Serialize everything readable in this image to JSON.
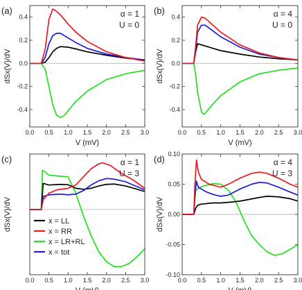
{
  "colors": {
    "LL": "#000000",
    "RR": "#e8191f",
    "LRRL": "#22e01c",
    "tot": "#1a1ad8"
  },
  "chart_data": [
    {
      "type": "line",
      "panel_label": "(a)",
      "annotation": [
        "α = 1",
        "U = 0"
      ],
      "xlabel": "V (mV)",
      "ylabel": "dSx(V)/dV",
      "xlim": [
        0,
        3.0
      ],
      "ylim": [
        -0.55,
        0.5
      ],
      "xticks": [
        0.0,
        0.5,
        1.0,
        1.5,
        2.0,
        2.5,
        3.0
      ],
      "xticklabels": [
        "0.0",
        "0.5",
        "1.0",
        "1.5",
        "2.0",
        "2.5",
        "3.0"
      ],
      "yticks": [
        -0.4,
        -0.2,
        0.0,
        0.2,
        0.4
      ],
      "yticklabels": [
        "-0.4",
        "-0.2",
        "0.0",
        "0.2",
        "0.4"
      ],
      "grid": false,
      "series": [
        {
          "key": "LL",
          "values": [
            [
              0,
              0
            ],
            [
              0.3,
              0
            ],
            [
              0.4,
              0.01
            ],
            [
              0.5,
              0.05
            ],
            [
              0.6,
              0.1
            ],
            [
              0.7,
              0.13
            ],
            [
              0.8,
              0.145
            ],
            [
              1.0,
              0.14
            ],
            [
              1.2,
              0.125
            ],
            [
              1.5,
              0.1
            ],
            [
              2.0,
              0.07
            ],
            [
              2.5,
              0.045
            ],
            [
              3.0,
              0.03
            ]
          ]
        },
        {
          "key": "RR",
          "values": [
            [
              0,
              0
            ],
            [
              0.3,
              0
            ],
            [
              0.4,
              0.12
            ],
            [
              0.5,
              0.38
            ],
            [
              0.6,
              0.47
            ],
            [
              0.7,
              0.45
            ],
            [
              0.8,
              0.42
            ],
            [
              1.0,
              0.34
            ],
            [
              1.2,
              0.27
            ],
            [
              1.5,
              0.19
            ],
            [
              2.0,
              0.1
            ],
            [
              2.5,
              0.05
            ],
            [
              3.0,
              0.02
            ]
          ]
        },
        {
          "key": "tot",
          "values": [
            [
              0,
              0
            ],
            [
              0.3,
              0
            ],
            [
              0.4,
              0.05
            ],
            [
              0.5,
              0.17
            ],
            [
              0.6,
              0.24
            ],
            [
              0.7,
              0.26
            ],
            [
              0.8,
              0.26
            ],
            [
              1.0,
              0.22
            ],
            [
              1.2,
              0.18
            ],
            [
              1.5,
              0.13
            ],
            [
              2.0,
              0.08
            ],
            [
              2.5,
              0.05
            ],
            [
              3.0,
              0.03
            ]
          ]
        },
        {
          "key": "LRRL",
          "values": [
            [
              0,
              0
            ],
            [
              0.3,
              0
            ],
            [
              0.4,
              -0.05
            ],
            [
              0.5,
              -0.2
            ],
            [
              0.6,
              -0.36
            ],
            [
              0.7,
              -0.45
            ],
            [
              0.8,
              -0.47
            ],
            [
              0.9,
              -0.45
            ],
            [
              1.0,
              -0.41
            ],
            [
              1.2,
              -0.33
            ],
            [
              1.5,
              -0.24
            ],
            [
              2.0,
              -0.14
            ],
            [
              2.5,
              -0.09
            ],
            [
              3.0,
              -0.06
            ]
          ]
        }
      ]
    },
    {
      "type": "line",
      "panel_label": "(b)",
      "annotation": [
        "α = 4",
        "U = 0"
      ],
      "xlabel": "V (mV)",
      "ylabel": "dSx(V)/dV",
      "xlim": [
        0,
        3.0
      ],
      "ylim": [
        -0.55,
        0.5
      ],
      "xticks": [
        0.0,
        0.5,
        1.0,
        1.5,
        2.0,
        2.5,
        3.0
      ],
      "xticklabels": [
        "0.0",
        "0.5",
        "1.0",
        "1.5",
        "2.0",
        "2.5",
        "3.0"
      ],
      "yticks": [
        -0.4,
        -0.2,
        0.0,
        0.2,
        0.4
      ],
      "yticklabels": [
        "-0.4",
        "-0.2",
        "0.0",
        "0.2",
        "0.4"
      ],
      "grid": false,
      "series": [
        {
          "key": "LL",
          "values": [
            [
              0,
              0
            ],
            [
              0.3,
              0
            ],
            [
              0.35,
              0.1
            ],
            [
              0.4,
              0.17
            ],
            [
              0.5,
              0.16
            ],
            [
              0.6,
              0.15
            ],
            [
              0.8,
              0.13
            ],
            [
              1.0,
              0.11
            ],
            [
              1.5,
              0.08
            ],
            [
              2.0,
              0.055
            ],
            [
              2.5,
              0.04
            ],
            [
              3.0,
              0.03
            ]
          ]
        },
        {
          "key": "RR",
          "values": [
            [
              0,
              0
            ],
            [
              0.3,
              0
            ],
            [
              0.35,
              0.15
            ],
            [
              0.4,
              0.33
            ],
            [
              0.5,
              0.4
            ],
            [
              0.6,
              0.39
            ],
            [
              0.8,
              0.33
            ],
            [
              1.0,
              0.27
            ],
            [
              1.5,
              0.16
            ],
            [
              2.0,
              0.09
            ],
            [
              2.5,
              0.05
            ],
            [
              3.0,
              0.03
            ]
          ]
        },
        {
          "key": "tot",
          "values": [
            [
              0,
              0
            ],
            [
              0.3,
              0
            ],
            [
              0.35,
              0.12
            ],
            [
              0.4,
              0.27
            ],
            [
              0.5,
              0.33
            ],
            [
              0.6,
              0.33
            ],
            [
              0.8,
              0.28
            ],
            [
              1.0,
              0.23
            ],
            [
              1.5,
              0.14
            ],
            [
              2.0,
              0.08
            ],
            [
              2.5,
              0.05
            ],
            [
              3.0,
              0.03
            ]
          ]
        },
        {
          "key": "LRRL",
          "values": [
            [
              0,
              0
            ],
            [
              0.3,
              0
            ],
            [
              0.35,
              -0.1
            ],
            [
              0.4,
              -0.25
            ],
            [
              0.5,
              -0.42
            ],
            [
              0.55,
              -0.44
            ],
            [
              0.6,
              -0.43
            ],
            [
              0.8,
              -0.35
            ],
            [
              1.0,
              -0.28
            ],
            [
              1.5,
              -0.16
            ],
            [
              2.0,
              -0.09
            ],
            [
              2.5,
              -0.06
            ],
            [
              3.0,
              -0.04
            ]
          ]
        }
      ]
    },
    {
      "type": "line",
      "panel_label": "(c)",
      "annotation": [
        "α = 1",
        "U = 3"
      ],
      "xlabel": "V (mV)",
      "ylabel": "dSx(V)/dV",
      "xlim": [
        0,
        3.0
      ],
      "ylim": [
        -0.2,
        0.17
      ],
      "xticks": [
        0.0,
        0.5,
        1.0,
        1.5,
        2.0,
        2.5,
        3.0
      ],
      "xticklabels": [
        "0.0",
        "0.5",
        "1.0",
        "1.5",
        "2.0",
        "2.5",
        "3.0"
      ],
      "yticks": [],
      "yticklabels": [],
      "grid": false,
      "legend": {
        "placement": "bottom-left",
        "entries": [
          {
            "key": "LL",
            "label": "x = LL"
          },
          {
            "key": "RR",
            "label": "x = RR"
          },
          {
            "key": "LRRL",
            "label": "x = LR+RL"
          },
          {
            "key": "tot",
            "label": "x = tot"
          }
        ]
      },
      "series": [
        {
          "key": "LL",
          "values": [
            [
              0,
              0
            ],
            [
              0.3,
              0
            ],
            [
              0.35,
              0.08
            ],
            [
              0.5,
              0.075
            ],
            [
              0.8,
              0.077
            ],
            [
              1.0,
              0.076
            ],
            [
              1.2,
              0.065
            ],
            [
              1.4,
              0.062
            ],
            [
              1.6,
              0.065
            ],
            [
              1.8,
              0.072
            ],
            [
              2.0,
              0.077
            ],
            [
              2.2,
              0.078
            ],
            [
              2.5,
              0.072
            ],
            [
              2.8,
              0.062
            ],
            [
              3.0,
              0.055
            ]
          ]
        },
        {
          "key": "RR",
          "values": [
            [
              0,
              0
            ],
            [
              0.3,
              0
            ],
            [
              0.35,
              0.03
            ],
            [
              0.5,
              0.05
            ],
            [
              0.7,
              0.06
            ],
            [
              1.0,
              0.065
            ],
            [
              1.2,
              0.075
            ],
            [
              1.4,
              0.1
            ],
            [
              1.6,
              0.125
            ],
            [
              1.8,
              0.14
            ],
            [
              1.9,
              0.143
            ],
            [
              2.1,
              0.135
            ],
            [
              2.4,
              0.11
            ],
            [
              2.7,
              0.09
            ],
            [
              3.0,
              0.065
            ]
          ]
        },
        {
          "key": "tot",
          "values": [
            [
              0,
              0
            ],
            [
              0.3,
              0
            ],
            [
              0.35,
              0.04
            ],
            [
              0.5,
              0.045
            ],
            [
              0.8,
              0.047
            ],
            [
              1.0,
              0.045
            ],
            [
              1.2,
              0.047
            ],
            [
              1.4,
              0.058
            ],
            [
              1.6,
              0.075
            ],
            [
              1.8,
              0.088
            ],
            [
              2.0,
              0.095
            ],
            [
              2.2,
              0.093
            ],
            [
              2.5,
              0.085
            ],
            [
              2.8,
              0.07
            ],
            [
              3.0,
              0.06
            ]
          ]
        },
        {
          "key": "LRRL",
          "values": [
            [
              0,
              0
            ],
            [
              0.3,
              0
            ],
            [
              0.33,
              0.12
            ],
            [
              0.4,
              0.115
            ],
            [
              0.5,
              0.105
            ],
            [
              0.8,
              0.102
            ],
            [
              1.0,
              0.1
            ],
            [
              1.2,
              0.05
            ],
            [
              1.4,
              -0.02
            ],
            [
              1.6,
              -0.08
            ],
            [
              1.8,
              -0.13
            ],
            [
              2.0,
              -0.16
            ],
            [
              2.2,
              -0.175
            ],
            [
              2.4,
              -0.175
            ],
            [
              2.6,
              -0.165
            ],
            [
              2.8,
              -0.145
            ],
            [
              3.0,
              -0.12
            ]
          ]
        }
      ]
    },
    {
      "type": "line",
      "panel_label": "(d)",
      "annotation": [
        "α = 4",
        "U = 3"
      ],
      "xlabel": "V (mV)",
      "ylabel": "dSx(V)/dV",
      "xlim": [
        0,
        3.0
      ],
      "ylim": [
        -0.1,
        0.1
      ],
      "xticks": [
        0.0,
        0.5,
        1.0,
        1.5,
        2.0,
        2.5,
        3.0
      ],
      "xticklabels": [
        "0.0",
        "0.5",
        "1.0",
        "1.5",
        "2.0",
        "2.5",
        "3.0"
      ],
      "yticks": [
        -0.1,
        -0.05,
        0.0,
        0.05,
        0.1
      ],
      "yticklabels": [
        "-0.10",
        "-0.05",
        "0.00",
        "0.05",
        "0.10"
      ],
      "grid": false,
      "series": [
        {
          "key": "LL",
          "values": [
            [
              0,
              0
            ],
            [
              0.3,
              0
            ],
            [
              0.35,
              0.01
            ],
            [
              0.4,
              0.015
            ],
            [
              0.5,
              0.017
            ],
            [
              0.8,
              0.019
            ],
            [
              1.0,
              0.019
            ],
            [
              1.2,
              0.02
            ],
            [
              1.5,
              0.022
            ],
            [
              2.0,
              0.028
            ],
            [
              2.2,
              0.03
            ],
            [
              2.5,
              0.029
            ],
            [
              2.8,
              0.026
            ],
            [
              3.0,
              0.022
            ]
          ]
        },
        {
          "key": "RR",
          "values": [
            [
              0,
              0
            ],
            [
              0.3,
              0
            ],
            [
              0.33,
              0.05
            ],
            [
              0.37,
              0.09
            ],
            [
              0.42,
              0.07
            ],
            [
              0.5,
              0.058
            ],
            [
              0.7,
              0.05
            ],
            [
              1.0,
              0.045
            ],
            [
              1.2,
              0.05
            ],
            [
              1.5,
              0.06
            ],
            [
              1.8,
              0.068
            ],
            [
              2.0,
              0.07
            ],
            [
              2.2,
              0.068
            ],
            [
              2.5,
              0.06
            ],
            [
              2.8,
              0.05
            ],
            [
              3.0,
              0.045
            ]
          ]
        },
        {
          "key": "tot",
          "values": [
            [
              0,
              0
            ],
            [
              0.3,
              0
            ],
            [
              0.33,
              0.03
            ],
            [
              0.37,
              0.055
            ],
            [
              0.42,
              0.045
            ],
            [
              0.6,
              0.038
            ],
            [
              0.8,
              0.033
            ],
            [
              1.0,
              0.03
            ],
            [
              1.2,
              0.032
            ],
            [
              1.5,
              0.042
            ],
            [
              1.8,
              0.05
            ],
            [
              2.0,
              0.053
            ],
            [
              2.2,
              0.052
            ],
            [
              2.5,
              0.045
            ],
            [
              2.8,
              0.037
            ],
            [
              3.0,
              0.032
            ]
          ]
        },
        {
          "key": "LRRL",
          "values": [
            [
              0,
              0
            ],
            [
              0.3,
              0
            ],
            [
              0.35,
              0.04
            ],
            [
              0.5,
              0.046
            ],
            [
              0.8,
              0.051
            ],
            [
              1.0,
              0.05
            ],
            [
              1.2,
              0.04
            ],
            [
              1.4,
              0.02
            ],
            [
              1.6,
              -0.01
            ],
            [
              1.8,
              -0.035
            ],
            [
              2.0,
              -0.05
            ],
            [
              2.2,
              -0.062
            ],
            [
              2.4,
              -0.068
            ],
            [
              2.6,
              -0.065
            ],
            [
              2.8,
              -0.058
            ],
            [
              3.0,
              -0.05
            ]
          ]
        }
      ]
    }
  ]
}
